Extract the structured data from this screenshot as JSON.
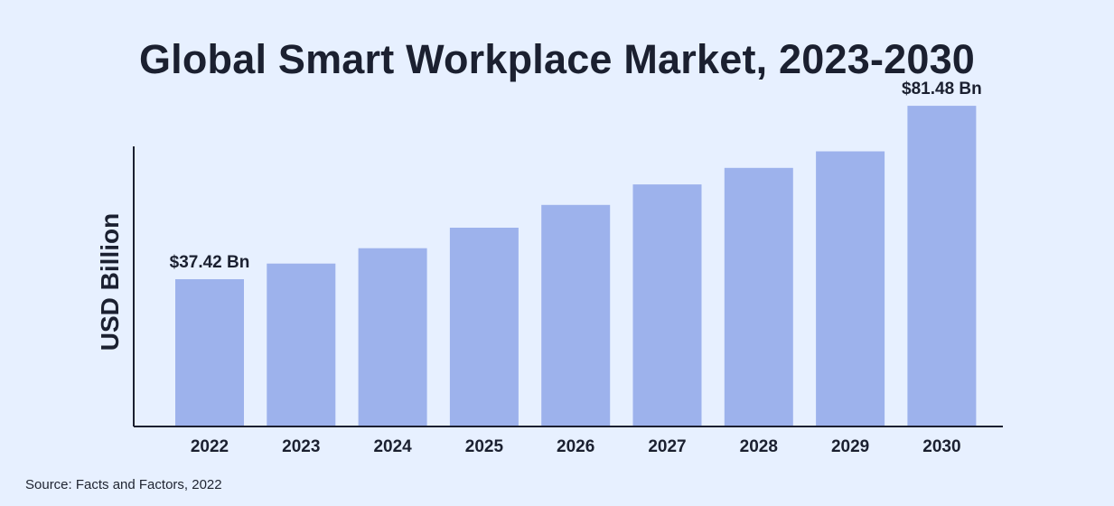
{
  "chart_data": {
    "type": "bar",
    "title": "Global Smart Workplace Market, 2023-2030",
    "xlabel": "",
    "ylabel": "USD Billion",
    "categories": [
      "2022",
      "2023",
      "2024",
      "2025",
      "2026",
      "2027",
      "2028",
      "2029",
      "2030"
    ],
    "series": [
      {
        "values": [
          37.42,
          41.4,
          45.3,
          50.5,
          56.3,
          61.5,
          65.7,
          69.9,
          81.48
        ]
      }
    ],
    "data_labels": [
      "$37.42 Bn",
      "",
      "",
      "",
      "",
      "",
      "",
      "",
      "$81.48 Bn"
    ],
    "ylim": [
      0,
      90
    ],
    "grid": false,
    "legend": "none",
    "colors": {
      "bar": "#9db2ec",
      "axis": "#1b2030",
      "background": "#e7f0ff",
      "text": "#1b2030"
    }
  },
  "source": "Source: Facts and Factors, 2022"
}
